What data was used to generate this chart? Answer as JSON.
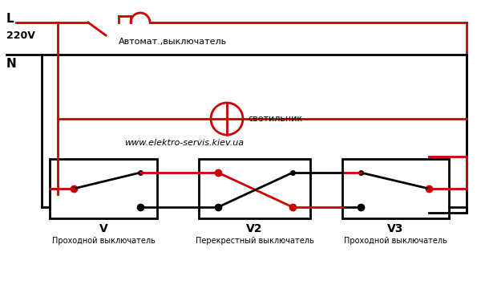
{
  "bg_color": "#ffffff",
  "red": "#cc0000",
  "black": "#000000",
  "label_L": "L",
  "label_220V": "220V",
  "label_N": "N",
  "label_avtomat": "Автомат.,выключатель",
  "label_svetilnik": "светильник",
  "label_website": "www.elektro-servis.kiev.ua",
  "label_V": "V",
  "label_V_desc": "Проходной выключатель",
  "label_V2": "V2",
  "label_V2_desc": "Перекрестный выключатель",
  "label_V3": "V3",
  "label_V3_desc": "Проходной выключатель"
}
